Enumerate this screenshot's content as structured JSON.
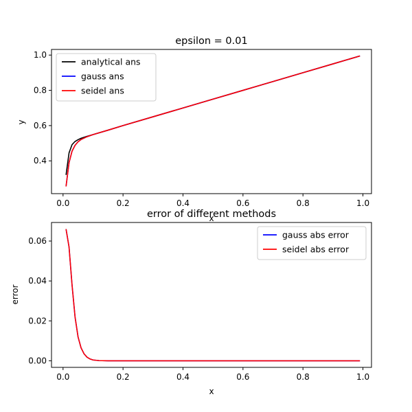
{
  "chart_data": [
    {
      "type": "line",
      "title": "epsilon = 0.01",
      "xlabel": "x",
      "ylabel": "y",
      "xlim": [
        -0.0385,
        1.0285
      ],
      "ylim": [
        0.214,
        1.032
      ],
      "xticks": [
        0.0,
        0.2,
        0.4,
        0.6,
        0.8,
        1.0
      ],
      "xtick_labels": [
        "0.0",
        "0.2",
        "0.4",
        "0.6",
        "0.8",
        "1.0"
      ],
      "yticks": [
        0.4,
        0.6,
        0.8,
        1.0
      ],
      "ytick_labels": [
        "0.4",
        "0.6",
        "0.8",
        "1.0"
      ],
      "legend_loc": "upper left",
      "series": [
        {
          "name": "analytical ans",
          "color": "#000000",
          "x": [
            0.01,
            0.02,
            0.03,
            0.04,
            0.05,
            0.06,
            0.08,
            0.1,
            0.15,
            0.2,
            0.3,
            0.4,
            0.5,
            0.6,
            0.7,
            0.8,
            0.9,
            0.99
          ],
          "y": [
            0.32,
            0.445,
            0.492,
            0.51,
            0.52,
            0.528,
            0.539,
            0.549,
            0.574,
            0.6,
            0.65,
            0.7,
            0.75,
            0.8,
            0.85,
            0.9,
            0.95,
            0.995
          ]
        },
        {
          "name": "gauss ans",
          "color": "#0000ff",
          "x": [
            0.01,
            0.02,
            0.03,
            0.04,
            0.05,
            0.06,
            0.08,
            0.1,
            0.15,
            0.2,
            0.3,
            0.4,
            0.5,
            0.6,
            0.7,
            0.8,
            0.9,
            0.99
          ],
          "y": [
            0.255,
            0.39,
            0.455,
            0.488,
            0.508,
            0.521,
            0.537,
            0.549,
            0.574,
            0.6,
            0.65,
            0.7,
            0.75,
            0.8,
            0.85,
            0.9,
            0.95,
            0.995
          ]
        },
        {
          "name": "seidel ans",
          "color": "#ff0000",
          "x": [
            0.01,
            0.02,
            0.03,
            0.04,
            0.05,
            0.06,
            0.08,
            0.1,
            0.15,
            0.2,
            0.3,
            0.4,
            0.5,
            0.6,
            0.7,
            0.8,
            0.9,
            0.99
          ],
          "y": [
            0.255,
            0.39,
            0.455,
            0.488,
            0.508,
            0.521,
            0.537,
            0.549,
            0.574,
            0.6,
            0.65,
            0.7,
            0.75,
            0.8,
            0.85,
            0.9,
            0.95,
            0.995
          ]
        }
      ]
    },
    {
      "type": "line",
      "title": "error of different methods",
      "xlabel": "x",
      "ylabel": "error",
      "xlim": [
        -0.0385,
        1.0285
      ],
      "ylim": [
        -0.0033,
        0.0693
      ],
      "xticks": [
        0.0,
        0.2,
        0.4,
        0.6,
        0.8,
        1.0
      ],
      "xtick_labels": [
        "0.0",
        "0.2",
        "0.4",
        "0.6",
        "0.8",
        "1.0"
      ],
      "yticks": [
        0.0,
        0.02,
        0.04,
        0.06
      ],
      "ytick_labels": [
        "0.00",
        "0.02",
        "0.04",
        "0.06"
      ],
      "legend_loc": "upper right",
      "series": [
        {
          "name": "gauss abs error",
          "color": "#0000ff",
          "x": [
            0.01,
            0.02,
            0.03,
            0.04,
            0.05,
            0.06,
            0.07,
            0.08,
            0.09,
            0.1,
            0.12,
            0.15,
            0.2,
            0.4,
            0.6,
            0.8,
            0.99
          ],
          "y": [
            0.066,
            0.057,
            0.038,
            0.022,
            0.012,
            0.0065,
            0.0035,
            0.0018,
            0.0009,
            0.0004,
            0.0001,
            0.0,
            0.0,
            0.0,
            0.0,
            0.0,
            0.0
          ]
        },
        {
          "name": "seidel abs error",
          "color": "#ff0000",
          "x": [
            0.01,
            0.02,
            0.03,
            0.04,
            0.05,
            0.06,
            0.07,
            0.08,
            0.09,
            0.1,
            0.12,
            0.15,
            0.2,
            0.4,
            0.6,
            0.8,
            0.99
          ],
          "y": [
            0.066,
            0.057,
            0.038,
            0.022,
            0.012,
            0.0065,
            0.0035,
            0.0018,
            0.0009,
            0.0004,
            0.0001,
            0.0,
            0.0,
            0.0,
            0.0,
            0.0,
            0.0
          ]
        }
      ]
    }
  ]
}
